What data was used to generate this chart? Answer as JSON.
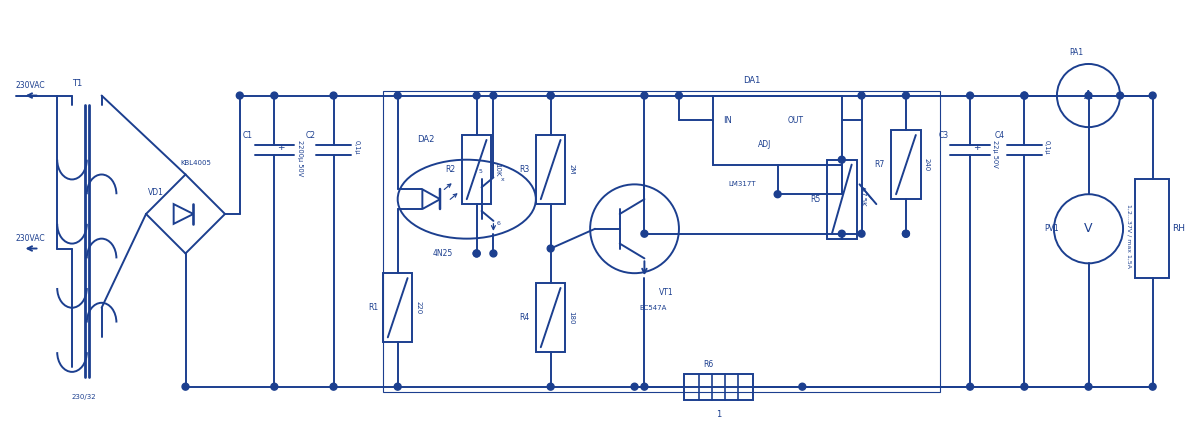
{
  "bg_color": "#ffffff",
  "line_color": "#1c3f8f",
  "lw": 1.4,
  "fig_w": 12.0,
  "fig_h": 4.24,
  "dpi": 100,
  "xlim": [
    0,
    120
  ],
  "ylim": [
    0,
    42.4
  ]
}
